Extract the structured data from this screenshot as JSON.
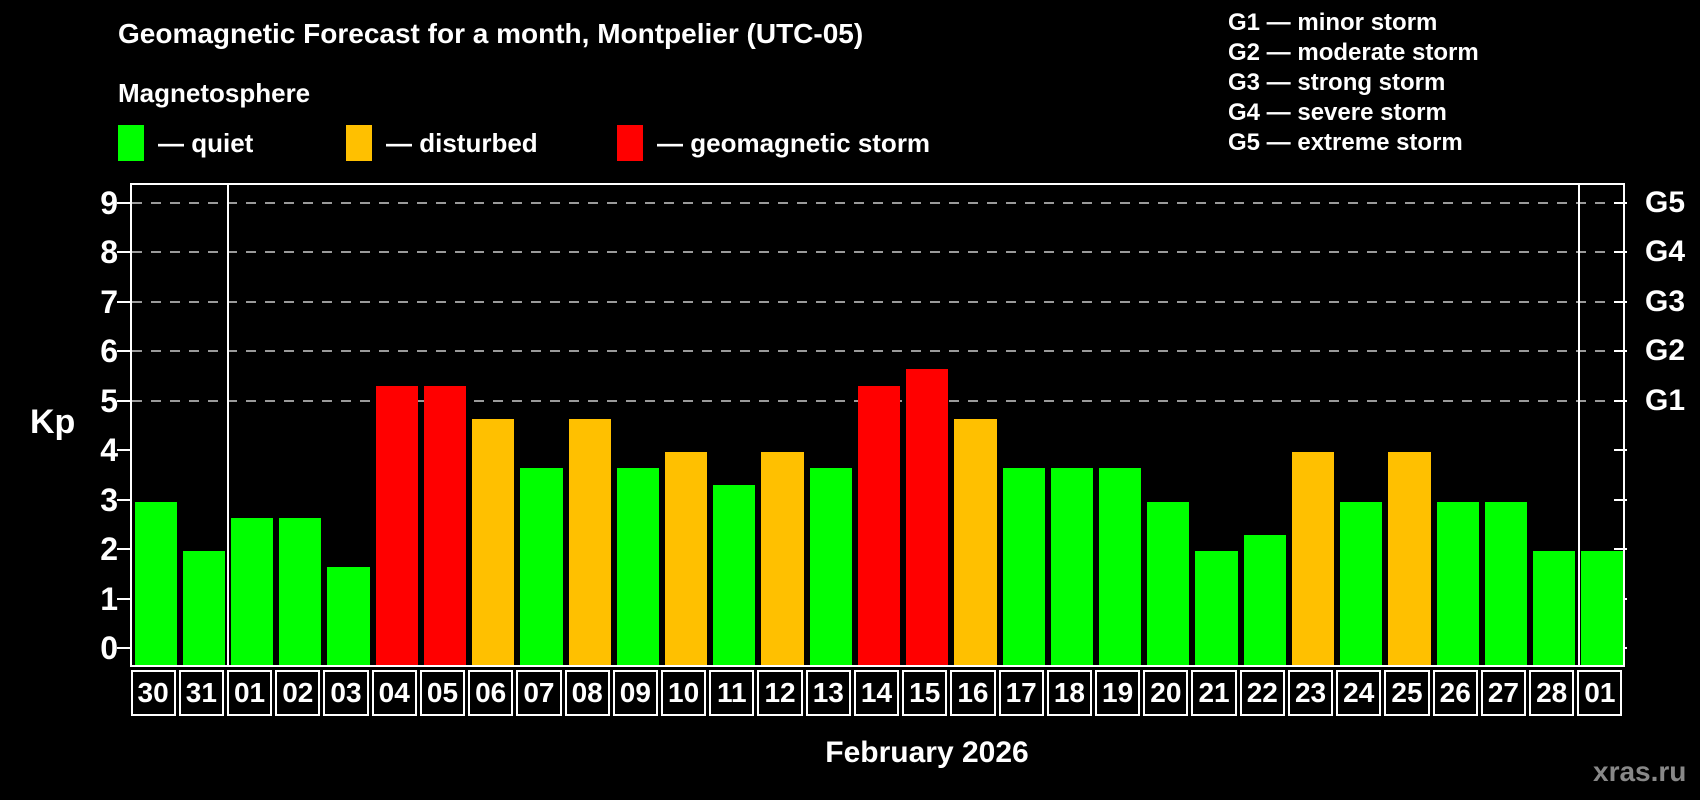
{
  "header": {
    "title": "Geomagnetic Forecast for a month, Montpelier (UTC-05)",
    "subtitle": "Magnetosphere"
  },
  "legend": {
    "quiet": "— quiet",
    "disturbed": "— disturbed",
    "storm": "— geomagnetic storm"
  },
  "storm_scale_legend": [
    "G1 — minor storm",
    "G2 — moderate storm",
    "G3 — strong storm",
    "G4 — severe storm",
    "G5 — extreme storm"
  ],
  "axes": {
    "y_label": "Kp",
    "y_ticks": [
      0,
      1,
      2,
      3,
      4,
      5,
      6,
      7,
      8,
      9
    ],
    "g_levels": [
      {
        "kp": 5,
        "label": "G1"
      },
      {
        "kp": 6,
        "label": "G2"
      },
      {
        "kp": 7,
        "label": "G3"
      },
      {
        "kp": 8,
        "label": "G4"
      },
      {
        "kp": 9,
        "label": "G5"
      }
    ]
  },
  "x_label": "February 2026",
  "watermark": "xras.ru",
  "colors": {
    "background": "#000000",
    "quiet": "#00ff00",
    "disturbed": "#ffc000",
    "storm": "#ff0000",
    "frame": "#ffffff",
    "grid": "#9a9a9a",
    "watermark": "#888888"
  },
  "chart_data": {
    "type": "bar",
    "title": "Geomagnetic Forecast for a month, Montpelier (UTC-05)",
    "subtitle": "Magnetosphere",
    "xlabel": "February 2026",
    "ylabel": "Kp",
    "ylim": [
      0,
      9.4
    ],
    "grid": "horizontal dashed lines at Kp 5,6,7,8,9 (G1-G5)",
    "legend_position": "top",
    "categories": [
      "30",
      "31",
      "01",
      "02",
      "03",
      "04",
      "05",
      "06",
      "07",
      "08",
      "09",
      "10",
      "11",
      "12",
      "13",
      "14",
      "15",
      "16",
      "17",
      "18",
      "19",
      "20",
      "21",
      "22",
      "23",
      "24",
      "25",
      "26",
      "27",
      "28",
      "01"
    ],
    "values": [
      3,
      2,
      2.67,
      2.67,
      1.67,
      5.33,
      5.33,
      4.67,
      3.67,
      4.67,
      3.67,
      4,
      3.33,
      4,
      3.67,
      5.33,
      5.67,
      4.67,
      3.67,
      3.67,
      3.67,
      3,
      2,
      2.33,
      4,
      3,
      4,
      3,
      3,
      2,
      2
    ],
    "color_thresholds": {
      "disturbed_min": 4,
      "storm_min": 5
    },
    "month_separators_after_index": [
      1,
      29
    ]
  }
}
